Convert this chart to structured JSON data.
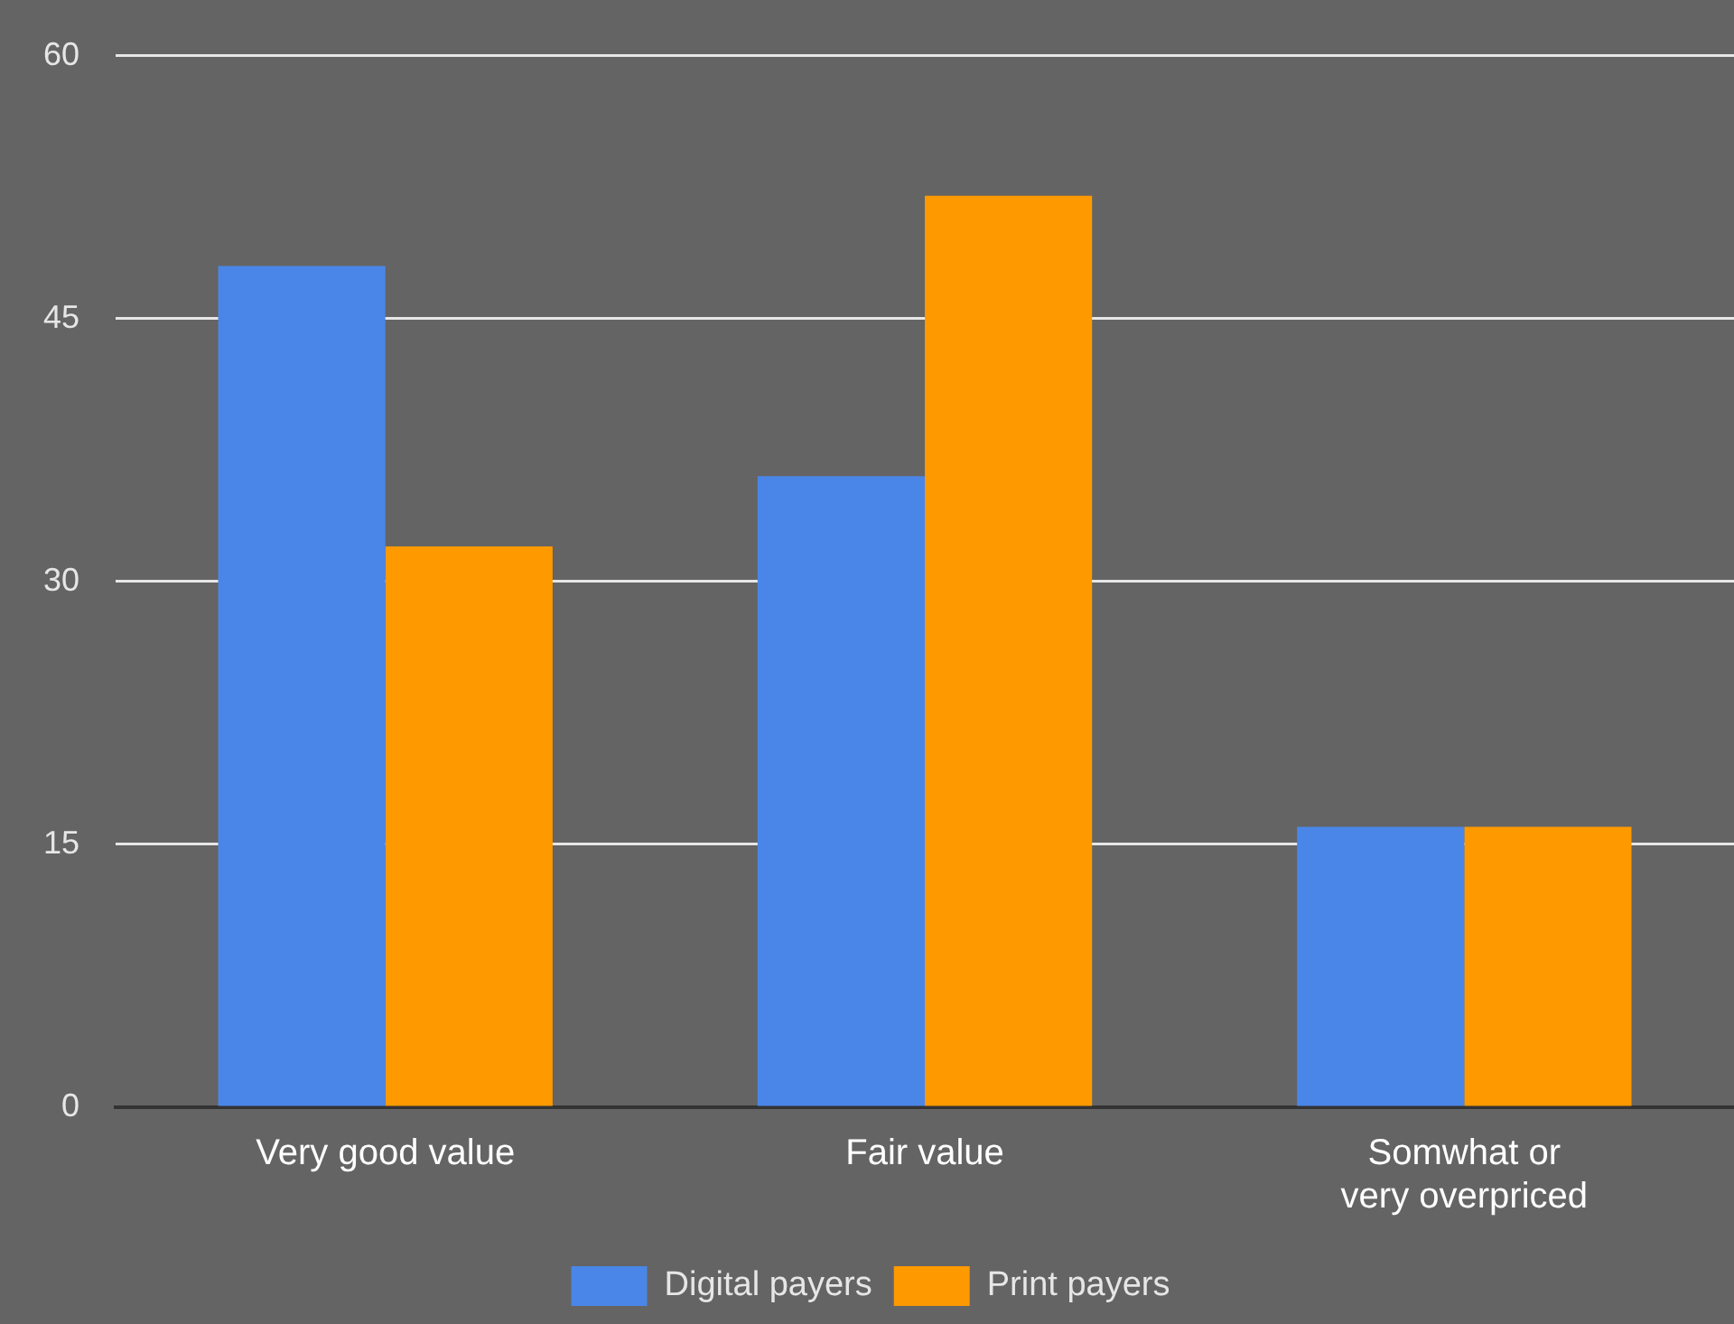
{
  "chart_data": {
    "type": "bar",
    "categories": [
      "Very good value",
      "Fair value",
      "Somwhat or very overpriced"
    ],
    "series": [
      {
        "name": "Digital payers",
        "color": "#4a86e8",
        "values": [
          48,
          36,
          16
        ]
      },
      {
        "name": "Print payers",
        "color": "#ff9900",
        "values": [
          32,
          52,
          16
        ]
      }
    ],
    "ylim": [
      0,
      60
    ],
    "yticks": [
      0,
      15,
      30,
      45,
      60
    ],
    "grid": "y",
    "legend": "bottom"
  }
}
